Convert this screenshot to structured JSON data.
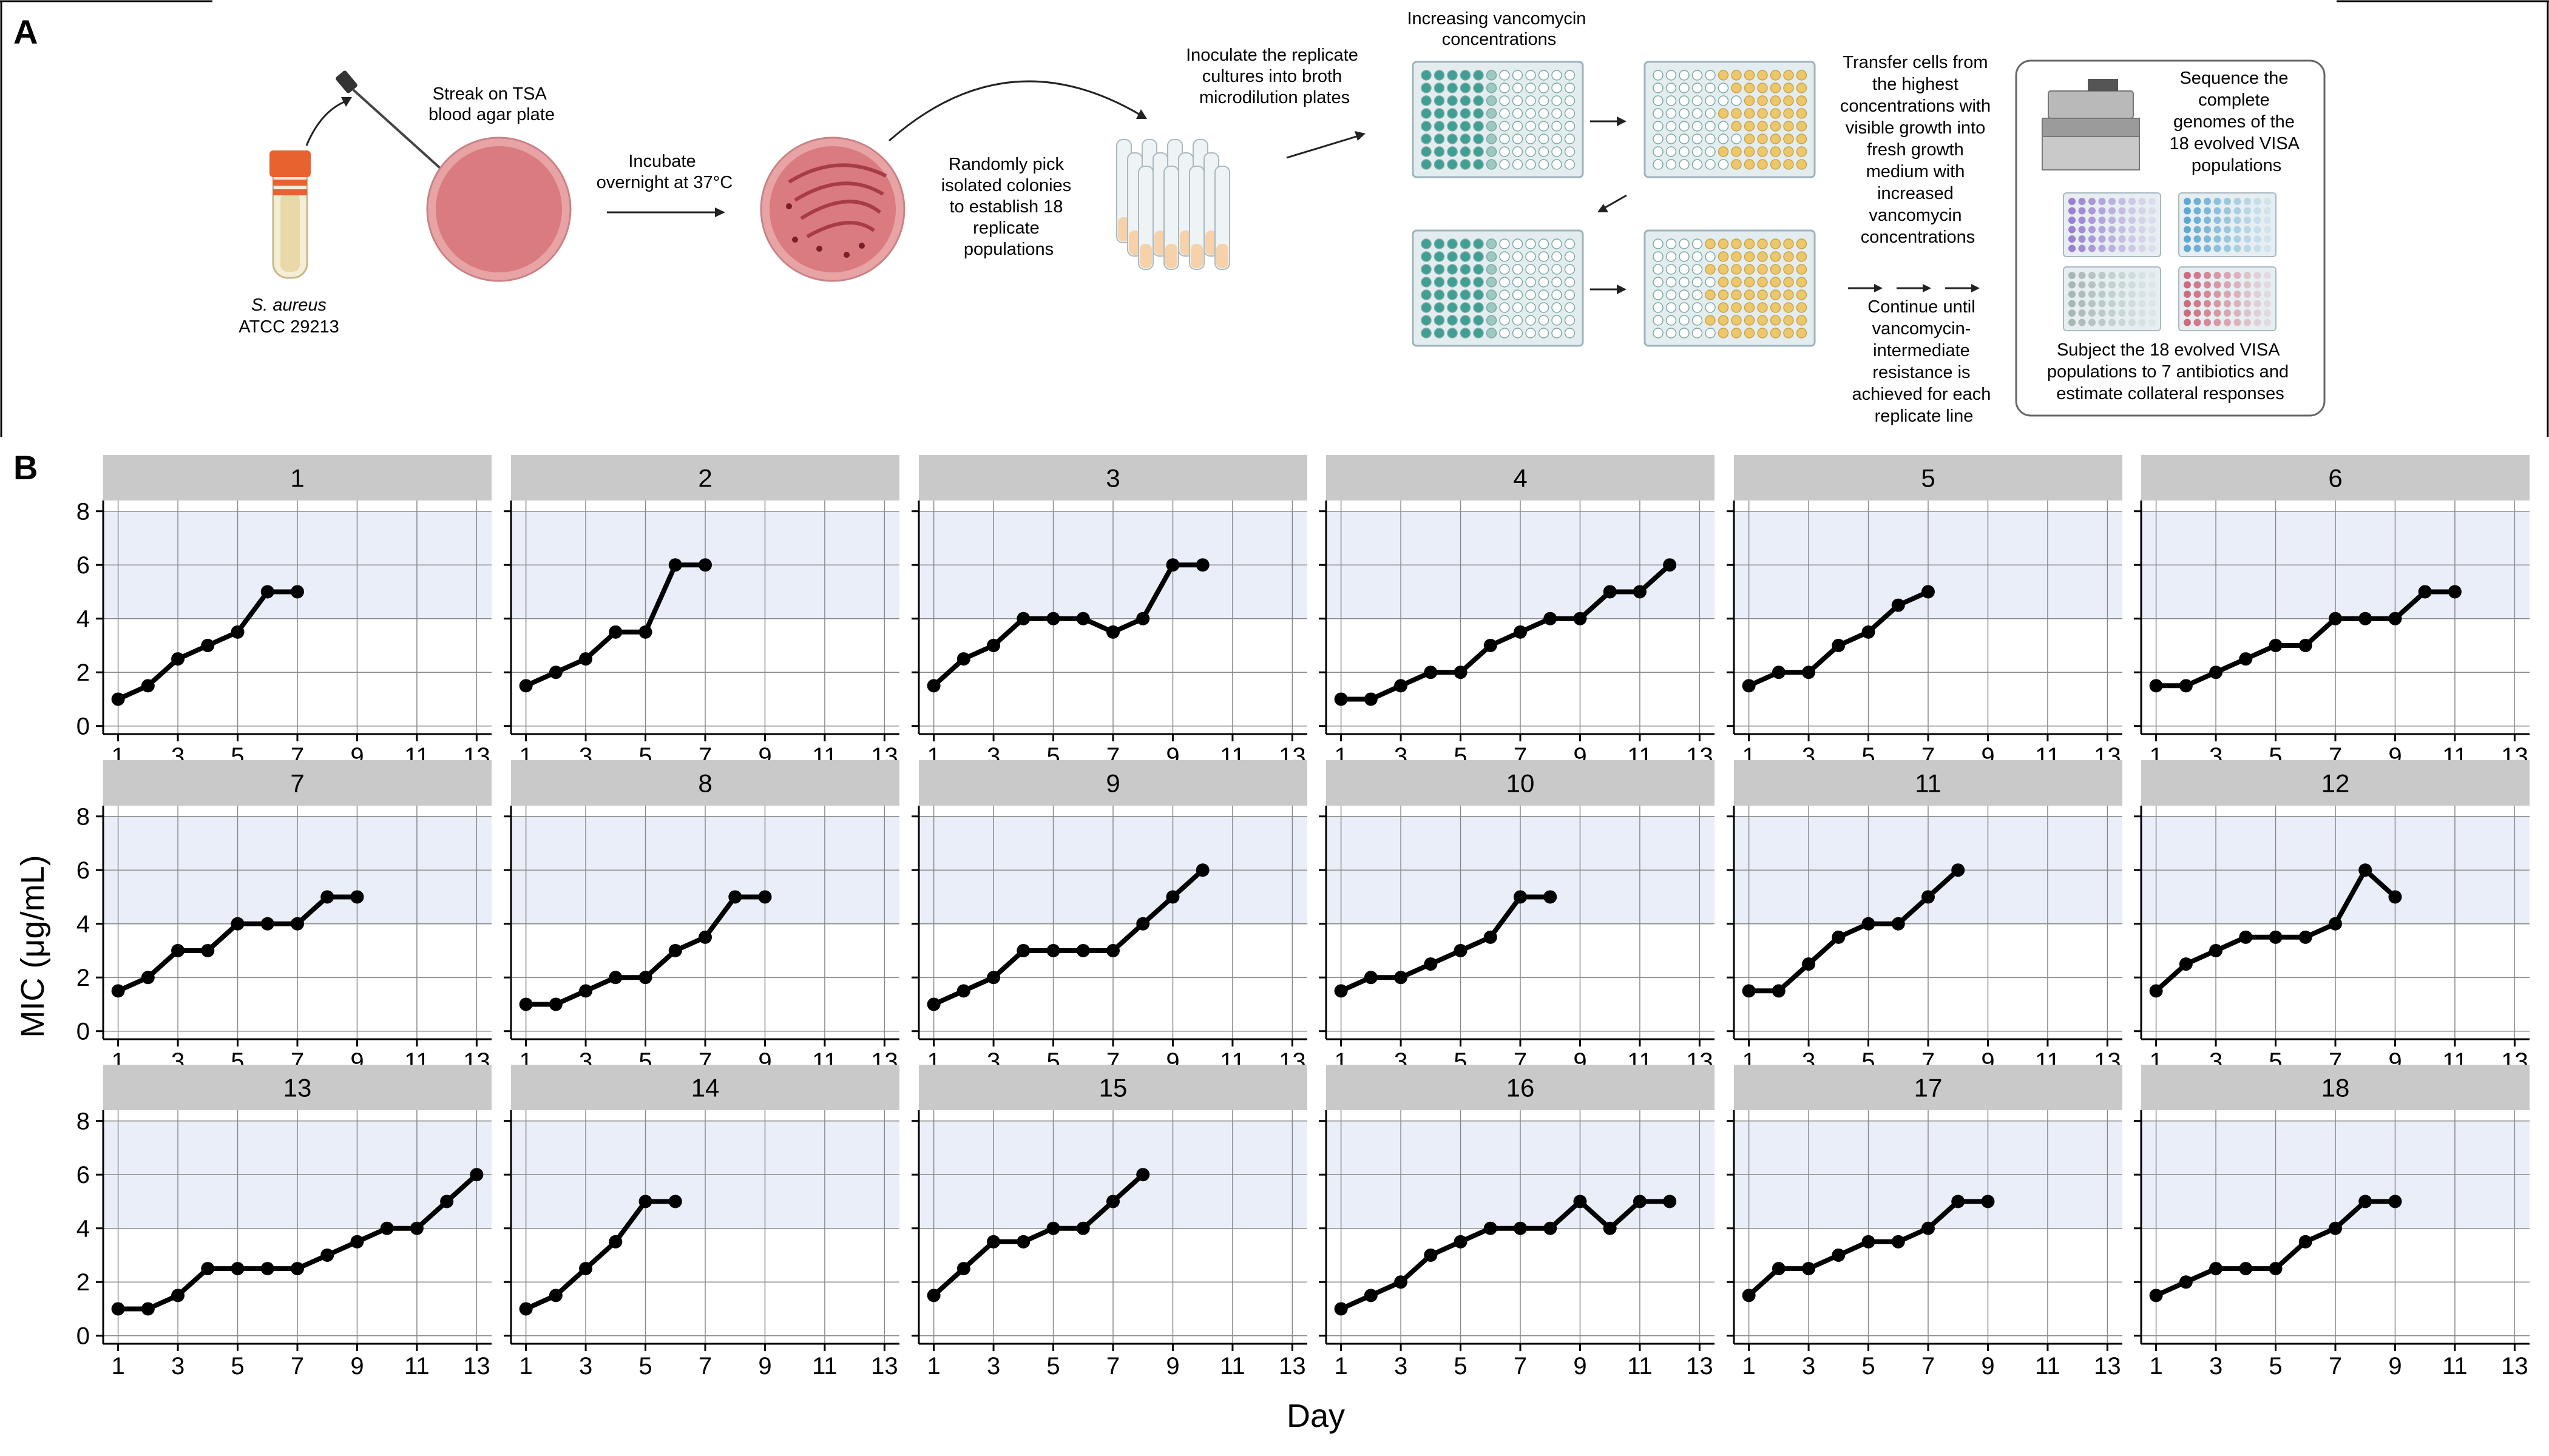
{
  "panel_a": {
    "label": "A",
    "strain_name": "S. aureus",
    "strain_id": "ATCC 29213",
    "step_streak": [
      "Streak on TSA",
      "blood agar plate"
    ],
    "step_incubate": [
      "Incubate",
      "overnight at 37°C"
    ],
    "step_pick": [
      "Randomly pick",
      "isolated colonies",
      "to establish 18",
      "replicate",
      "populations"
    ],
    "step_inoculate": [
      "Inoculate the replicate",
      "cultures into broth",
      "microdilution plates"
    ],
    "plates_title": [
      "Increasing vancomycin",
      "concentrations"
    ],
    "step_transfer": [
      "Transfer cells from",
      "the highest",
      "concentrations with",
      "visible growth into",
      "fresh growth",
      "medium with",
      "increased",
      "vancomycin",
      "concentrations"
    ],
    "step_continue": [
      "Continue until",
      "vancomycin-",
      "intermediate",
      "resistance is",
      "achieved for each",
      "replicate line"
    ],
    "step_sequence": [
      "Sequence the",
      "complete",
      "genomes of the",
      "18 evolved VISA",
      "populations"
    ],
    "step_subject": [
      "Subject the 18 evolved VISA",
      "populations to 7 antibiotics and",
      "estimate collateral responses"
    ],
    "colors": {
      "teal": "#3f9f93",
      "yellow": "#ecc86a",
      "agar": "#d97b7f",
      "tube_cap": "#e8622f"
    }
  },
  "panel_b": {
    "label": "B",
    "ylabel": "MIC (μg/mL)",
    "xlabel": "Day",
    "x_ticks": [
      1,
      3,
      5,
      7,
      9,
      11,
      13
    ],
    "y_ticks": [
      0,
      2,
      4,
      6,
      8
    ],
    "xlim": [
      0.5,
      13.5
    ],
    "ylim": [
      -0.3,
      8.4
    ],
    "shaded_band": [
      4,
      8
    ],
    "colors": {
      "line": "#000000",
      "band": "#e9eef8",
      "strip": "#c9c9c9",
      "grid": "#8a8a8a"
    }
  },
  "chart_data": {
    "type": "line",
    "facets": [
      {
        "title": "1",
        "x": [
          1,
          2,
          3,
          4,
          5,
          6,
          7
        ],
        "y": [
          1,
          1.5,
          2.5,
          3,
          3.5,
          5,
          5
        ]
      },
      {
        "title": "2",
        "x": [
          1,
          2,
          3,
          4,
          5,
          6,
          7
        ],
        "y": [
          1.5,
          2,
          2.5,
          3.5,
          3.5,
          6,
          6
        ]
      },
      {
        "title": "3",
        "x": [
          1,
          2,
          3,
          4,
          5,
          6,
          7,
          8,
          9,
          10
        ],
        "y": [
          1.5,
          2.5,
          3,
          4,
          4,
          4,
          3.5,
          4,
          6,
          6
        ]
      },
      {
        "title": "4",
        "x": [
          1,
          2,
          3,
          4,
          5,
          6,
          7,
          8,
          9,
          10,
          11,
          12
        ],
        "y": [
          1,
          1,
          1.5,
          2,
          2,
          3,
          3.5,
          4,
          4,
          5,
          5,
          6
        ]
      },
      {
        "title": "5",
        "x": [
          1,
          2,
          3,
          4,
          5,
          6,
          7
        ],
        "y": [
          1.5,
          2,
          2,
          3,
          3.5,
          4.5,
          5
        ]
      },
      {
        "title": "6",
        "x": [
          1,
          2,
          3,
          4,
          5,
          6,
          7,
          8,
          9,
          10,
          11
        ],
        "y": [
          1.5,
          1.5,
          2,
          2.5,
          3,
          3,
          4,
          4,
          4,
          5,
          5
        ]
      },
      {
        "title": "7",
        "x": [
          1,
          2,
          3,
          4,
          5,
          6,
          7,
          8,
          9
        ],
        "y": [
          1.5,
          2,
          3,
          3,
          4,
          4,
          4,
          5,
          5
        ]
      },
      {
        "title": "8",
        "x": [
          1,
          2,
          3,
          4,
          5,
          6,
          7,
          8,
          9
        ],
        "y": [
          1,
          1,
          1.5,
          2,
          2,
          3,
          3.5,
          5,
          5
        ]
      },
      {
        "title": "9",
        "x": [
          1,
          2,
          3,
          4,
          5,
          6,
          7,
          8,
          9,
          10
        ],
        "y": [
          1,
          1.5,
          2,
          3,
          3,
          3,
          3,
          4,
          5,
          6
        ]
      },
      {
        "title": "10",
        "x": [
          1,
          2,
          3,
          4,
          5,
          6,
          7,
          8
        ],
        "y": [
          1.5,
          2,
          2,
          2.5,
          3,
          3.5,
          5,
          5
        ]
      },
      {
        "title": "11",
        "x": [
          1,
          2,
          3,
          4,
          5,
          6,
          7,
          8
        ],
        "y": [
          1.5,
          1.5,
          2.5,
          3.5,
          4,
          4,
          5,
          6
        ]
      },
      {
        "title": "12",
        "x": [
          1,
          2,
          3,
          4,
          5,
          6,
          7,
          8,
          9
        ],
        "y": [
          1.5,
          2.5,
          3,
          3.5,
          3.5,
          3.5,
          4,
          6,
          5
        ]
      },
      {
        "title": "13",
        "x": [
          1,
          2,
          3,
          4,
          5,
          6,
          7,
          8,
          9,
          10,
          11,
          12,
          13
        ],
        "y": [
          1,
          1,
          1.5,
          2.5,
          2.5,
          2.5,
          2.5,
          3,
          3.5,
          4,
          4,
          5,
          6
        ]
      },
      {
        "title": "14",
        "x": [
          1,
          2,
          3,
          4,
          5,
          6
        ],
        "y": [
          1,
          1.5,
          2.5,
          3.5,
          5,
          5
        ]
      },
      {
        "title": "15",
        "x": [
          1,
          2,
          3,
          4,
          5,
          6,
          7,
          8
        ],
        "y": [
          1.5,
          2.5,
          3.5,
          3.5,
          4,
          4,
          5,
          6
        ]
      },
      {
        "title": "16",
        "x": [
          1,
          2,
          3,
          4,
          5,
          6,
          7,
          8,
          9,
          10,
          11,
          12
        ],
        "y": [
          1,
          1.5,
          2,
          3,
          3.5,
          4,
          4,
          4,
          5,
          4,
          5,
          5
        ]
      },
      {
        "title": "17",
        "x": [
          1,
          2,
          3,
          4,
          5,
          6,
          7,
          8,
          9
        ],
        "y": [
          1.5,
          2.5,
          2.5,
          3,
          3.5,
          3.5,
          4,
          5,
          5
        ]
      },
      {
        "title": "18",
        "x": [
          1,
          2,
          3,
          4,
          5,
          6,
          7,
          8,
          9
        ],
        "y": [
          1.5,
          2,
          2.5,
          2.5,
          2.5,
          3.5,
          4,
          5,
          5
        ]
      }
    ]
  }
}
